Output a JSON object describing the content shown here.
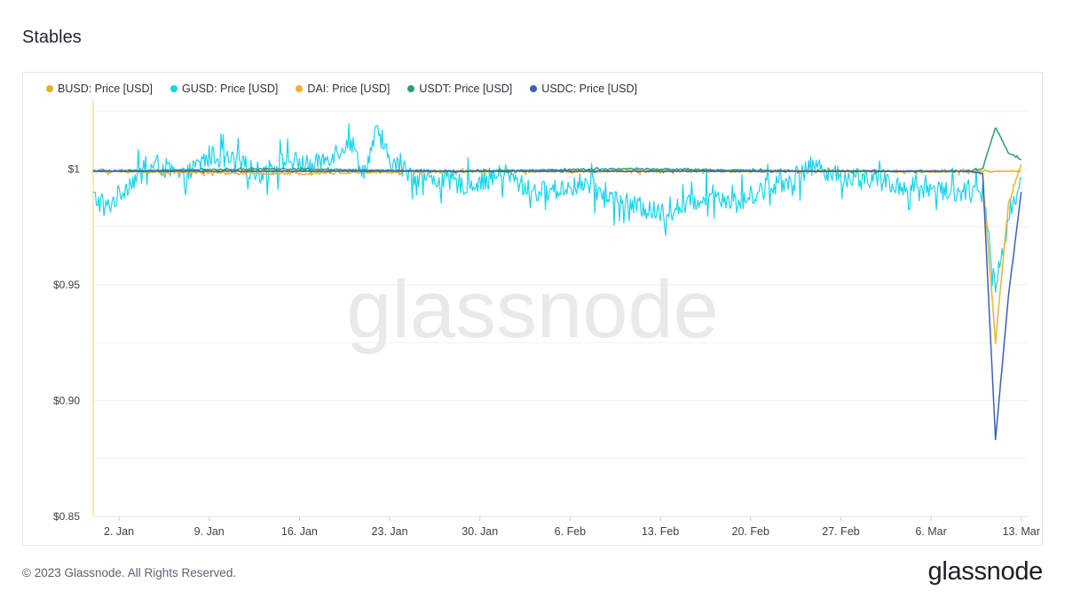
{
  "title": "Stables",
  "watermark": "glassnode",
  "footer": {
    "copyright": "© 2023 Glassnode. All Rights Reserved.",
    "logo_text": "glassnode"
  },
  "chart_data": {
    "type": "line",
    "title": "Stables",
    "xlabel": "",
    "ylabel": "",
    "legend_position": "top-left",
    "grid": true,
    "x_range": [
      "2022-12-31",
      "2023-03-13"
    ],
    "ylim": [
      0.85,
      1.03
    ],
    "y_ticks": [
      {
        "value": 1.0,
        "label": "$1"
      },
      {
        "value": 0.95,
        "label": "$0.95"
      },
      {
        "value": 0.9,
        "label": "$0.90"
      },
      {
        "value": 0.85,
        "label": "$0.85"
      }
    ],
    "x_ticks": [
      {
        "date": "2023-01-02",
        "label": "2. Jan"
      },
      {
        "date": "2023-01-09",
        "label": "9. Jan"
      },
      {
        "date": "2023-01-16",
        "label": "16. Jan"
      },
      {
        "date": "2023-01-23",
        "label": "23. Jan"
      },
      {
        "date": "2023-01-30",
        "label": "30. Jan"
      },
      {
        "date": "2023-02-06",
        "label": "6. Feb"
      },
      {
        "date": "2023-02-13",
        "label": "13. Feb"
      },
      {
        "date": "2023-02-20",
        "label": "20. Feb"
      },
      {
        "date": "2023-02-27",
        "label": "27. Feb"
      },
      {
        "date": "2023-03-06",
        "label": "6. Mar"
      },
      {
        "date": "2023-03-13",
        "label": "13. Mar"
      }
    ],
    "series": [
      {
        "name": "GUSD: Price [USD]",
        "color": "#17d4ec",
        "x": [
          "2022-12-31",
          "2023-01-01",
          "2023-01-03",
          "2023-01-05",
          "2023-01-07",
          "2023-01-09",
          "2023-01-11",
          "2023-01-13",
          "2023-01-15",
          "2023-01-17",
          "2023-01-19",
          "2023-01-20",
          "2023-01-21",
          "2023-01-22",
          "2023-01-23",
          "2023-01-25",
          "2023-01-27",
          "2023-01-29",
          "2023-02-01",
          "2023-02-03",
          "2023-02-05",
          "2023-02-07",
          "2023-02-09",
          "2023-02-11",
          "2023-02-13",
          "2023-02-15",
          "2023-02-17",
          "2023-02-19",
          "2023-02-21",
          "2023-02-23",
          "2023-02-25",
          "2023-02-27",
          "2023-03-01",
          "2023-03-03",
          "2023-03-05",
          "2023-03-07",
          "2023-03-09",
          "2023-03-10",
          "2023-03-11",
          "2023-03-12",
          "2023-03-13"
        ],
        "y": [
          0.988,
          0.983,
          0.995,
          1.002,
          0.996,
          1.006,
          1.003,
          0.998,
          1.004,
          1.001,
          1.008,
          1.012,
          0.998,
          1.016,
          1.003,
          0.997,
          0.995,
          0.993,
          0.998,
          0.99,
          0.991,
          0.994,
          0.988,
          0.984,
          0.981,
          0.984,
          0.99,
          0.985,
          0.992,
          0.995,
          1.002,
          0.996,
          0.997,
          0.993,
          0.992,
          0.991,
          0.99,
          0.989,
          0.95,
          0.978,
          0.996
        ]
      },
      {
        "name": "DAI: Price [USD]",
        "color": "#f0b232",
        "x": [
          "2022-12-31",
          "2023-01-14",
          "2023-01-28",
          "2023-02-11",
          "2023-02-25",
          "2023-03-09",
          "2023-03-10",
          "2023-03-11",
          "2023-03-12",
          "2023-03-13"
        ],
        "y": [
          0.999,
          0.998,
          0.999,
          0.999,
          0.999,
          0.999,
          0.998,
          0.925,
          0.985,
          1.002
        ]
      },
      {
        "name": "USDT: Price [USD]",
        "color": "#2aa075",
        "x": [
          "2022-12-31",
          "2023-01-14",
          "2023-01-28",
          "2023-02-11",
          "2023-02-25",
          "2023-03-09",
          "2023-03-10",
          "2023-03-11",
          "2023-03-12",
          "2023-03-13"
        ],
        "y": [
          0.999,
          1.0,
          0.999,
          1.0,
          0.999,
          0.999,
          1.0,
          1.018,
          1.007,
          1.004
        ]
      },
      {
        "name": "USDC: Price [USD]",
        "color": "#3a5fbd",
        "x": [
          "2022-12-31",
          "2023-01-14",
          "2023-01-28",
          "2023-02-11",
          "2023-02-25",
          "2023-03-09",
          "2023-03-10",
          "2023-03-11",
          "2023-03-12",
          "2023-03-13"
        ],
        "y": [
          0.999,
          0.999,
          0.999,
          0.999,
          0.999,
          0.999,
          0.998,
          0.883,
          0.945,
          0.99
        ]
      },
      {
        "name": "BUSD: Price [USD]",
        "color": "#e3b21a",
        "x": [
          "2022-12-31",
          "2023-01-14",
          "2023-01-28",
          "2023-02-11",
          "2023-02-25",
          "2023-03-09",
          "2023-03-13"
        ],
        "y": [
          0.999,
          0.999,
          0.999,
          0.999,
          0.999,
          0.999,
          0.999
        ]
      }
    ],
    "legend_order": [
      "BUSD: Price [USD]",
      "GUSD: Price [USD]",
      "DAI: Price [USD]",
      "USDT: Price [USD]",
      "USDC: Price [USD]"
    ]
  }
}
